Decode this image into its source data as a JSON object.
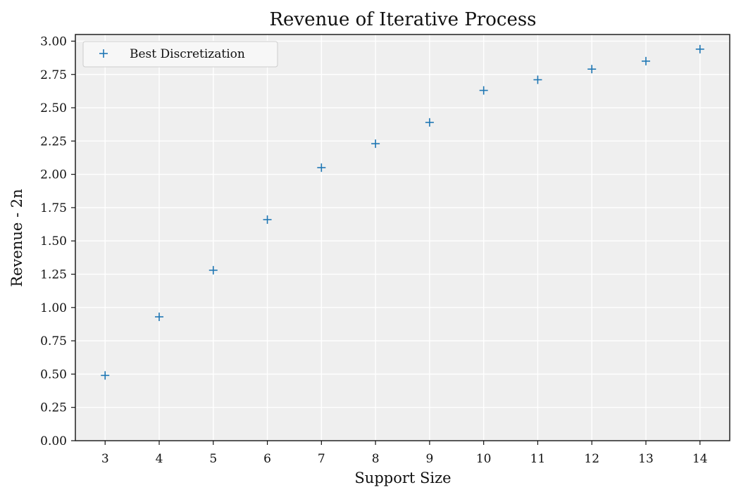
{
  "chart_data": {
    "type": "scatter",
    "title": "Revenue of Iterative Process",
    "xlabel": "Support Size",
    "ylabel": "Revenue - 2n",
    "xlim": [
      2.45,
      14.55
    ],
    "ylim": [
      0,
      3.05
    ],
    "x_ticks": [
      3,
      4,
      5,
      6,
      7,
      8,
      9,
      10,
      11,
      12,
      13,
      14
    ],
    "y_ticks": [
      "0.00",
      "0.25",
      "0.50",
      "0.75",
      "1.00",
      "1.25",
      "1.50",
      "1.75",
      "2.00",
      "2.25",
      "2.50",
      "2.75",
      "3.00"
    ],
    "grid": true,
    "legend_position": "top-left",
    "background_color": "#efefef",
    "series": [
      {
        "name": "Best Discretization",
        "marker": "plus",
        "color": "#1f77b4",
        "x": [
          3,
          4,
          5,
          6,
          7,
          8,
          9,
          10,
          11,
          12,
          13,
          14
        ],
        "y": [
          0.49,
          0.93,
          1.28,
          1.66,
          2.05,
          2.23,
          2.39,
          2.63,
          2.71,
          2.79,
          2.85,
          2.94
        ]
      }
    ]
  }
}
